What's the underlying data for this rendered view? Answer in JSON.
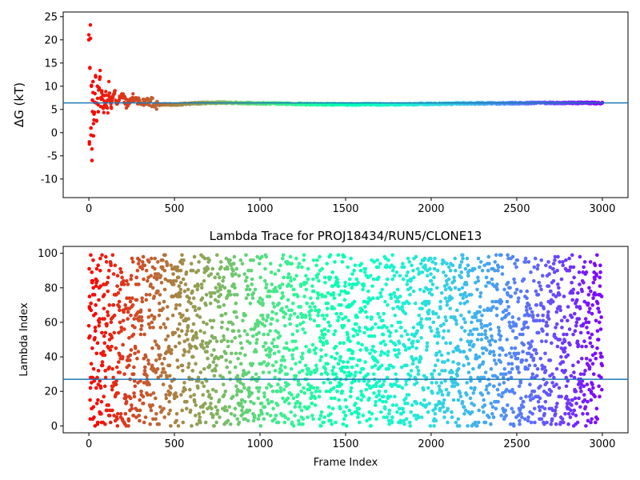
{
  "chart_data": [
    {
      "type": "scatter",
      "title": "",
      "xlabel": "",
      "ylabel": "ΔG (kT)",
      "xlim": [
        -150,
        3150
      ],
      "ylim": [
        -14,
        26
      ],
      "xticks": [
        0,
        500,
        1000,
        1500,
        2000,
        2500,
        3000
      ],
      "yticks": [
        -10,
        -5,
        0,
        5,
        10,
        15,
        20,
        25
      ],
      "hline": 6.4,
      "hline_color": "#1f77b4",
      "colormap": "rainbow (red at frame 0 → violet at frame 3000)",
      "grid": false,
      "legend": "none",
      "series": [
        {
          "n_frames": 3000,
          "x": [
            0,
            3,
            6,
            9,
            12,
            15,
            18,
            21,
            24,
            27,
            30,
            35,
            40,
            45,
            50,
            55,
            60,
            65,
            70,
            75,
            80,
            90,
            100,
            110,
            120,
            130,
            140,
            150,
            165,
            180,
            200,
            225,
            250,
            275,
            300,
            325,
            350,
            400,
            450,
            500,
            600,
            700,
            800,
            900,
            1000,
            1200,
            1400,
            1600,
            1800,
            2000,
            2200,
            2400,
            2600,
            2800,
            3000
          ],
          "y": [
            20.0,
            -2.0,
            14.0,
            20.3,
            1.0,
            10.0,
            -6.0,
            7.0,
            11.0,
            -0.7,
            4.0,
            6.5,
            12.0,
            2.5,
            10.0,
            4.5,
            9.5,
            12.0,
            7.5,
            9.0,
            5.5,
            8.0,
            6.5,
            7.0,
            8.5,
            5.5,
            7.5,
            8.5,
            6.5,
            7.8,
            7.5,
            6.0,
            7.2,
            7.5,
            6.3,
            6.8,
            7.0,
            6.0,
            6.1,
            6.0,
            6.3,
            6.4,
            6.5,
            6.4,
            6.3,
            6.2,
            6.1,
            6.1,
            6.1,
            6.2,
            6.3,
            6.3,
            6.4,
            6.4,
            6.4
          ]
        }
      ]
    },
    {
      "type": "scatter",
      "title": "Lambda Trace for PROJ18434/RUN5/CLONE13",
      "xlabel": "Frame Index",
      "ylabel": "Lambda Index",
      "xlim": [
        -150,
        3150
      ],
      "ylim": [
        -4,
        104
      ],
      "xticks": [
        0,
        500,
        1000,
        1500,
        2000,
        2500,
        3000
      ],
      "yticks": [
        0,
        20,
        40,
        60,
        80,
        100
      ],
      "hline": 27,
      "hline_color": "#1f77b4",
      "colormap": "rainbow (red at frame 0 → violet at frame 3000)",
      "grid": false,
      "legend": "none",
      "series": [
        {
          "n_frames": 3000,
          "frame_step": 1,
          "lambda_range": [
            0,
            99
          ]
        }
      ]
    }
  ]
}
